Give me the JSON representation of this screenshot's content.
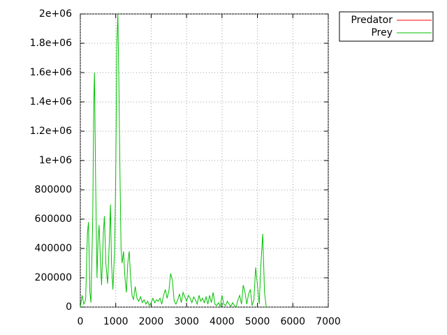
{
  "chart_data": {
    "type": "line",
    "x": [
      0,
      50,
      100,
      150,
      200,
      230,
      270,
      300,
      350,
      380,
      400,
      430,
      470,
      500,
      530,
      570,
      600,
      650,
      680,
      720,
      770,
      820,
      850,
      880,
      920,
      970,
      1000,
      1030,
      1060,
      1090,
      1120,
      1150,
      1180,
      1220,
      1260,
      1300,
      1340,
      1380,
      1420,
      1460,
      1500,
      1550,
      1600,
      1650,
      1700,
      1750,
      1800,
      1850,
      1900,
      1950,
      2000,
      2050,
      2100,
      2150,
      2200,
      2250,
      2300,
      2350,
      2400,
      2450,
      2500,
      2550,
      2600,
      2650,
      2700,
      2750,
      2800,
      2850,
      2900,
      2950,
      3000,
      3050,
      3100,
      3150,
      3200,
      3250,
      3300,
      3350,
      3400,
      3450,
      3500,
      3550,
      3600,
      3650,
      3700,
      3750,
      3800,
      3850,
      3900,
      3950,
      4000,
      4050,
      4100,
      4150,
      4200,
      4250,
      4300,
      4350,
      4400,
      4450,
      4500,
      4550,
      4600,
      4650,
      4700,
      4750,
      4800,
      4850,
      4900,
      4950,
      5000,
      5050,
      5100,
      5150,
      5200,
      5250
    ],
    "series": [
      {
        "name": "Predator",
        "color": "#ff0000",
        "values": [
          null,
          null,
          null,
          null,
          null,
          null,
          null,
          null,
          null,
          null,
          null,
          null,
          null,
          null,
          null,
          null,
          null,
          null,
          null,
          null,
          null,
          null,
          null,
          null,
          null,
          null,
          null,
          null,
          null,
          null,
          null,
          null,
          null,
          null,
          null,
          null,
          null,
          null,
          null,
          null,
          null,
          null,
          null,
          null,
          null,
          null,
          null,
          null,
          null,
          null,
          null,
          null,
          null,
          null,
          null,
          null,
          null,
          null,
          null,
          null,
          null,
          null,
          null,
          null,
          null,
          null,
          null,
          null,
          null,
          null,
          null,
          null,
          null,
          null,
          null,
          null,
          null,
          null,
          null,
          null,
          null,
          null,
          null,
          null,
          null,
          null,
          null,
          null,
          null,
          null,
          null,
          null,
          null,
          null,
          null,
          null,
          null,
          null,
          null,
          null,
          null,
          null,
          null,
          null,
          null,
          null,
          null,
          null,
          null,
          null,
          null,
          null,
          null,
          null,
          null,
          null
        ]
      },
      {
        "name": "Prey",
        "color": "#00c000",
        "values": [
          0,
          80000,
          20000,
          50000,
          500000,
          580000,
          100000,
          30000,
          600000,
          1400000,
          1600000,
          900000,
          200000,
          450000,
          560000,
          300000,
          150000,
          500000,
          620000,
          300000,
          160000,
          450000,
          700000,
          300000,
          120000,
          400000,
          900000,
          1800000,
          2000000,
          1500000,
          900000,
          400000,
          300000,
          380000,
          200000,
          100000,
          300000,
          380000,
          200000,
          80000,
          50000,
          140000,
          60000,
          40000,
          70000,
          30000,
          50000,
          20000,
          40000,
          10000,
          30000,
          60000,
          30000,
          50000,
          40000,
          60000,
          20000,
          80000,
          120000,
          60000,
          110000,
          230000,
          180000,
          40000,
          20000,
          50000,
          90000,
          30000,
          100000,
          70000,
          40000,
          80000,
          60000,
          30000,
          70000,
          50000,
          20000,
          80000,
          40000,
          60000,
          30000,
          70000,
          20000,
          80000,
          30000,
          100000,
          20000,
          10000,
          30000,
          5000,
          80000,
          20000,
          10000,
          40000,
          20000,
          5000,
          30000,
          10000,
          0,
          50000,
          80000,
          20000,
          150000,
          100000,
          20000,
          90000,
          120000,
          10000,
          50000,
          270000,
          150000,
          20000,
          300000,
          500000,
          100000,
          0
        ]
      }
    ],
    "xlim": [
      0,
      7000
    ],
    "xticks": [
      0,
      1000,
      2000,
      3000,
      4000,
      5000,
      6000,
      7000
    ],
    "ylim": [
      0,
      2000000
    ],
    "yticks": [
      0,
      200000,
      400000,
      600000,
      800000,
      {
        "value": 1000000,
        "label": "1e+06"
      },
      {
        "value": 1200000,
        "label": "1.2e+06"
      },
      {
        "value": 1400000,
        "label": "1.4e+06"
      },
      {
        "value": 1600000,
        "label": "1.6e+06"
      },
      {
        "value": 1800000,
        "label": "1.8e+06"
      },
      {
        "value": 2000000,
        "label": "2e+06"
      }
    ],
    "grid": true,
    "legend": "outside-right"
  }
}
